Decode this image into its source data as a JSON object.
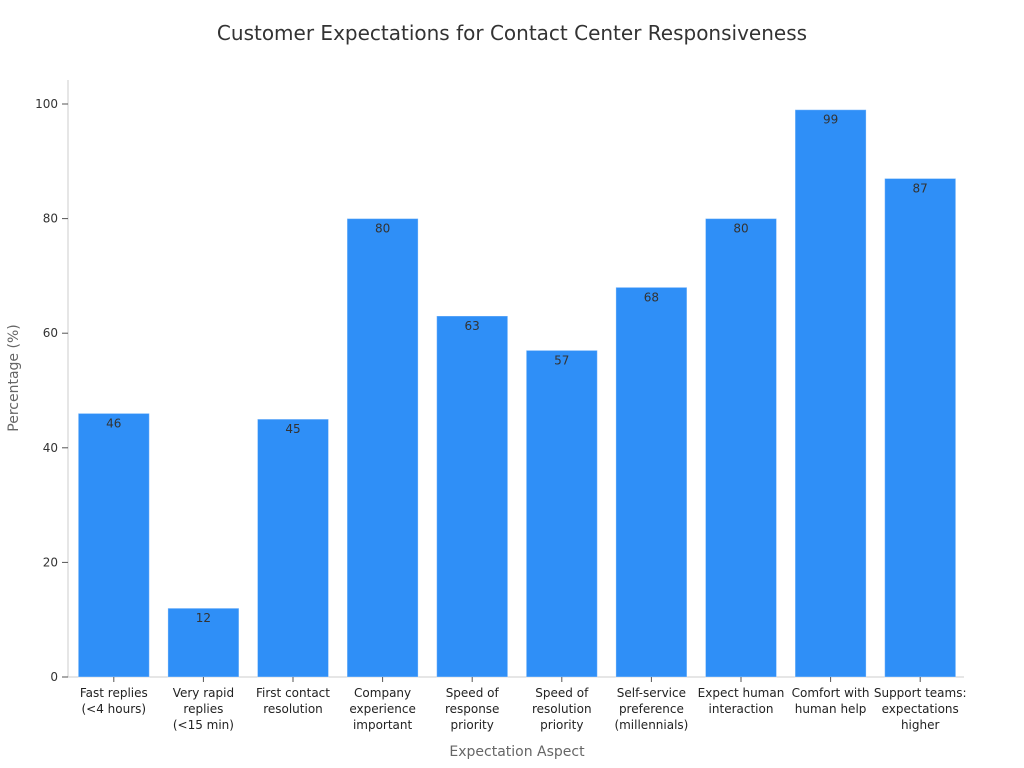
{
  "chart_data": {
    "type": "bar",
    "title": "Customer Expectations for Contact Center Responsiveness",
    "xlabel": "Expectation Aspect",
    "ylabel": "Percentage (%)",
    "ylim": [
      0,
      100
    ],
    "yticks": [
      0,
      20,
      40,
      60,
      80,
      100
    ],
    "grid": false,
    "bar_color": "#2f8ff7",
    "categories": [
      [
        "Fast replies",
        "(<4 hours)"
      ],
      [
        "Very rapid",
        "replies",
        "(<15 min)"
      ],
      [
        "First contact",
        "resolution"
      ],
      [
        "Company",
        "experience",
        "important"
      ],
      [
        "Speed of",
        "response",
        "priority"
      ],
      [
        "Speed of",
        "resolution",
        "priority"
      ],
      [
        "Self-service",
        "preference",
        "(millennials)"
      ],
      [
        "Expect human",
        "interaction"
      ],
      [
        "Comfort with",
        "human help"
      ],
      [
        "Support teams:",
        "expectations",
        "higher"
      ]
    ],
    "values": [
      46,
      12,
      45,
      80,
      63,
      57,
      68,
      80,
      99,
      87
    ]
  }
}
